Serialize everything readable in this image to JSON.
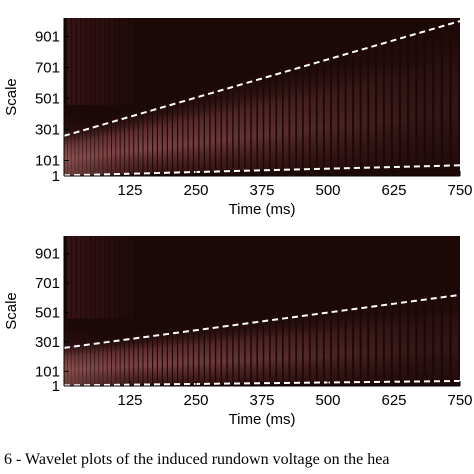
{
  "caption": "6 - Wavelet plots of the induced rundown voltage on the hea",
  "colors": {
    "background": "#1d0808",
    "ridge_dark": "#2a0e0f",
    "ridge_mid": "#8a4a4c",
    "hot": "#f6e6dc",
    "boundary_line": "#ffffff"
  },
  "chart_data": [
    {
      "type": "heatmap",
      "xlabel": "Time (ms)",
      "ylabel": "Scale",
      "x_ticks": [
        125,
        250,
        375,
        500,
        625,
        750
      ],
      "x_tick_labels": [
        "125",
        "250",
        "375",
        "500",
        "625",
        "750"
      ],
      "y_ticks": [
        1,
        101,
        301,
        501,
        701,
        901
      ],
      "y_tick_labels": [
        "1",
        "101",
        "301",
        "501",
        "701",
        "901"
      ],
      "xlim": [
        0,
        750
      ],
      "ylim": [
        1,
        1020
      ],
      "upper_boundary": {
        "x": [
          0,
          750
        ],
        "y": [
          260,
          1000
        ]
      },
      "lower_boundary": {
        "x": [
          0,
          750
        ],
        "y": [
          5,
          70
        ]
      },
      "dominant_band": {
        "t_start": 0,
        "t_end": 750,
        "scale_start": 100,
        "scale_end": 500,
        "intensity_decay": "strong"
      }
    },
    {
      "type": "heatmap",
      "xlabel": "Time (ms)",
      "ylabel": "Scale",
      "x_ticks": [
        125,
        250,
        375,
        500,
        625,
        750
      ],
      "x_tick_labels": [
        "125",
        "250",
        "375",
        "500",
        "625",
        "750"
      ],
      "y_ticks": [
        1,
        101,
        301,
        501,
        701,
        901
      ],
      "y_tick_labels": [
        "1",
        "101",
        "301",
        "501",
        "701",
        "901"
      ],
      "xlim": [
        0,
        750
      ],
      "ylim": [
        1,
        1020
      ],
      "upper_boundary": {
        "x": [
          0,
          750
        ],
        "y": [
          260,
          620
        ]
      },
      "lower_boundary": {
        "x": [
          0,
          750
        ],
        "y": [
          5,
          35
        ]
      },
      "dominant_band": {
        "t_start": 0,
        "t_end": 750,
        "scale_start": 100,
        "scale_end": 400,
        "intensity_decay": "strong"
      }
    }
  ]
}
